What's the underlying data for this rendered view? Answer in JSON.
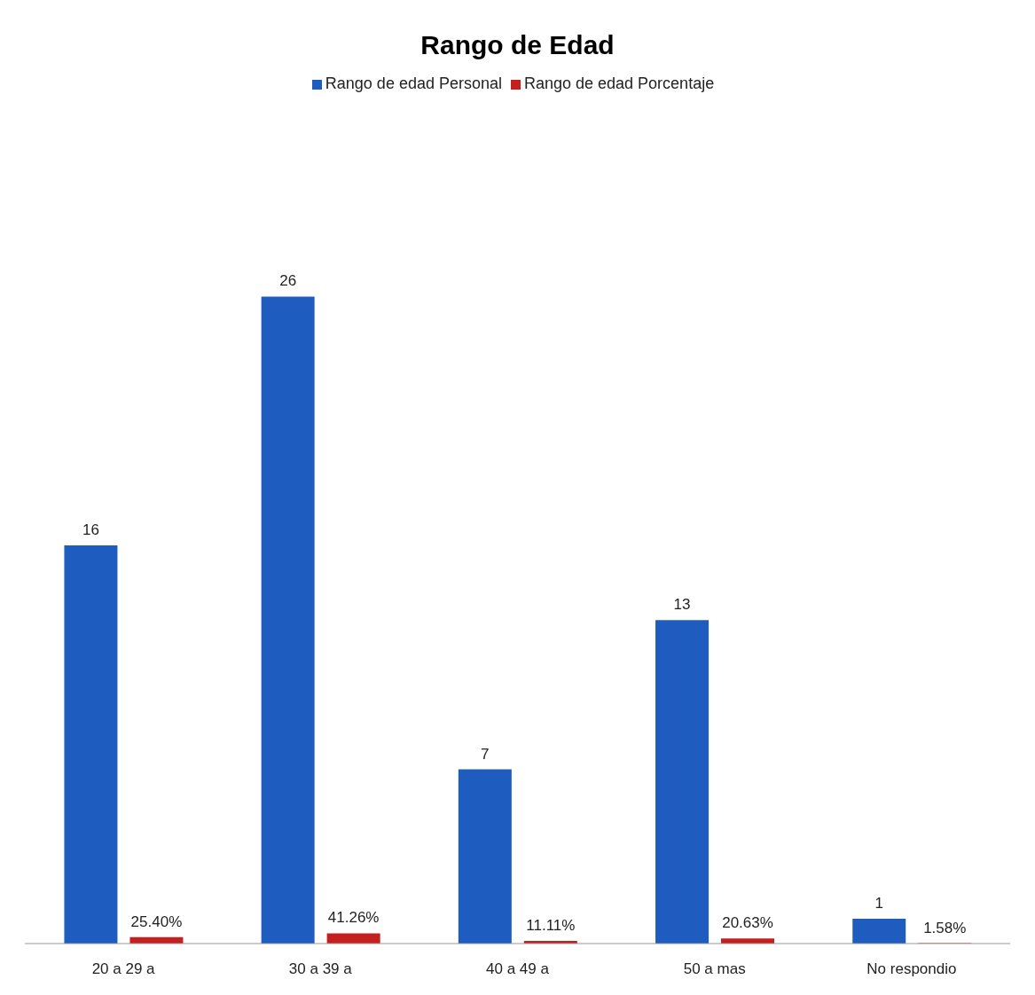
{
  "chart_data": {
    "type": "bar",
    "title": "Rango de Edad",
    "categories": [
      "20 a 29 a",
      "30 a 39 a",
      "40 a 49 a",
      "50 a mas",
      "No respondio"
    ],
    "series": [
      {
        "name": "Rango de edad Personal",
        "color": "#1f5cc0",
        "values": [
          16,
          26,
          7,
          13,
          1
        ],
        "value_labels": [
          "16",
          "26",
          "7",
          "13",
          "1"
        ]
      },
      {
        "name": "Rango de edad Porcentaje",
        "color": "#c42020",
        "values": [
          0.254,
          0.4126,
          0.1111,
          0.2063,
          0.0158
        ],
        "value_labels": [
          "25.40%",
          "41.26%",
          "11.11%",
          "20.63%",
          "1.58%"
        ]
      }
    ],
    "legend": "top"
  }
}
